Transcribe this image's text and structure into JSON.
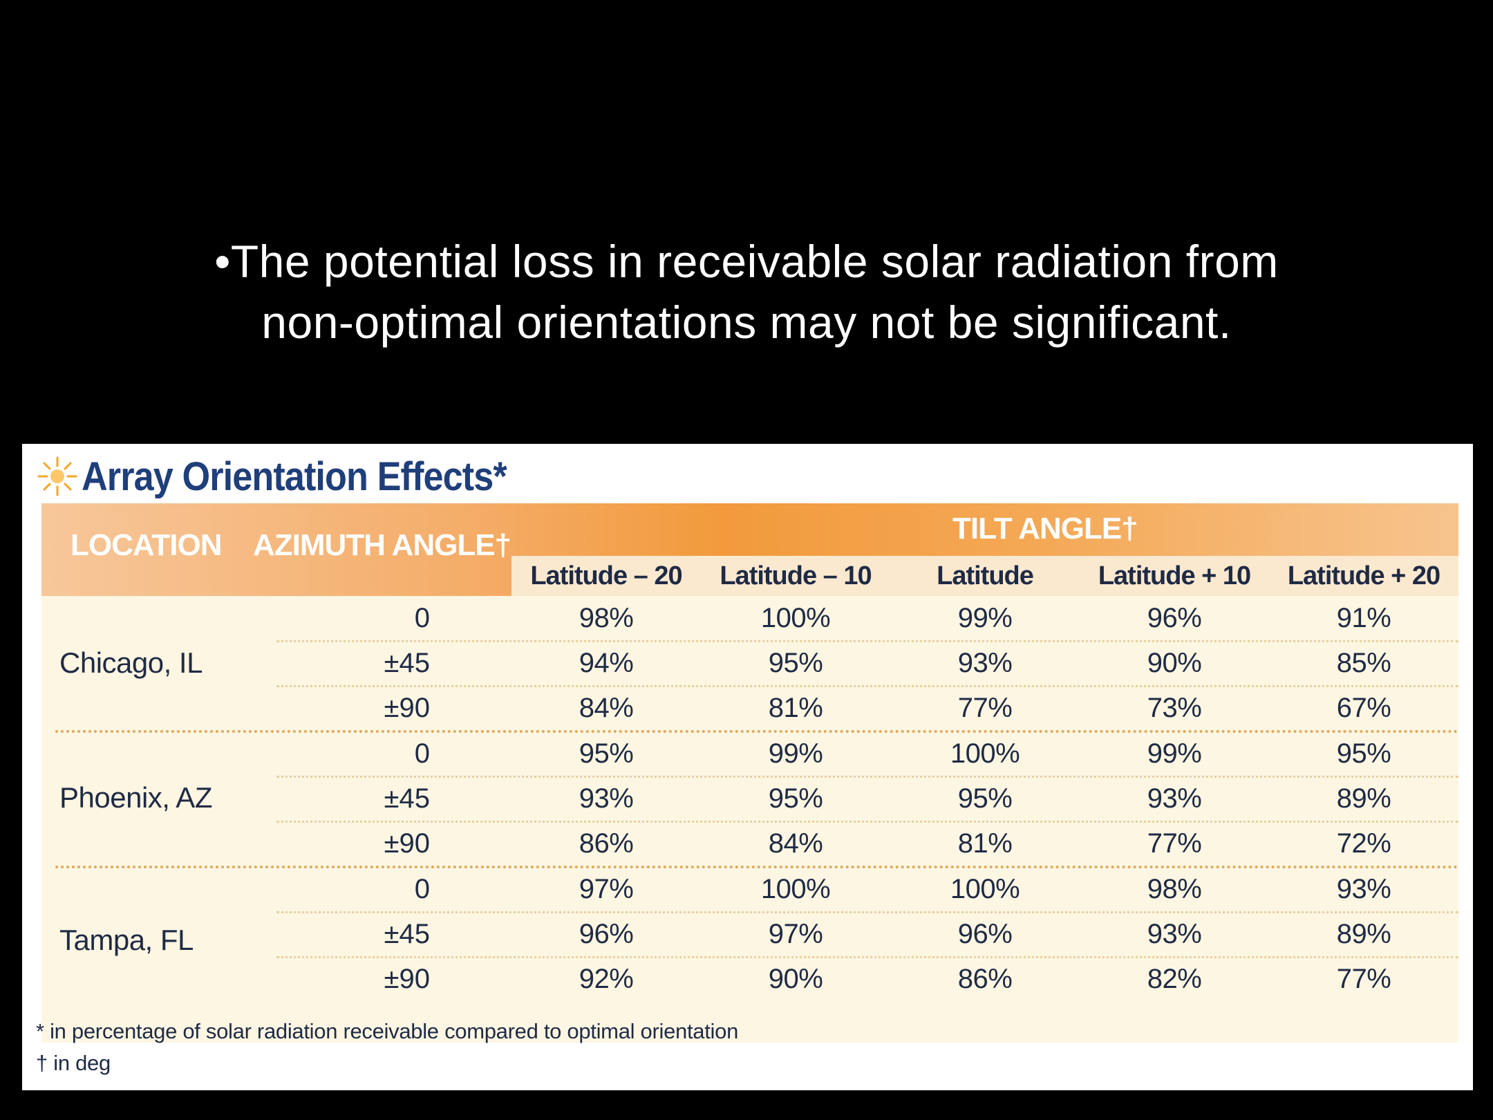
{
  "slide": {
    "bullet_line1": "•The potential loss in receivable solar radiation from",
    "bullet_line2": "non-optimal orientations may not be significant."
  },
  "table": {
    "title": "Array Orientation Effects*",
    "headers": {
      "location": "LOCATION",
      "azimuth": "AZIMUTH ANGLE†",
      "tilt": "TILT ANGLE†"
    },
    "tilt_columns": [
      "Latitude – 20",
      "Latitude – 10",
      "Latitude",
      "Latitude + 10",
      "Latitude + 20"
    ],
    "groups": [
      {
        "location": "Chicago, IL",
        "rows": [
          {
            "azimuth": "0",
            "values": [
              "98%",
              "100%",
              "99%",
              "96%",
              "91%"
            ]
          },
          {
            "azimuth": "±45",
            "values": [
              "94%",
              "95%",
              "93%",
              "90%",
              "85%"
            ]
          },
          {
            "azimuth": "±90",
            "values": [
              "84%",
              "81%",
              "77%",
              "73%",
              "67%"
            ]
          }
        ]
      },
      {
        "location": "Phoenix, AZ",
        "rows": [
          {
            "azimuth": "0",
            "values": [
              "95%",
              "99%",
              "100%",
              "99%",
              "95%"
            ]
          },
          {
            "azimuth": "±45",
            "values": [
              "93%",
              "95%",
              "95%",
              "93%",
              "89%"
            ]
          },
          {
            "azimuth": "±90",
            "values": [
              "86%",
              "84%",
              "81%",
              "77%",
              "72%"
            ]
          }
        ]
      },
      {
        "location": "Tampa, FL",
        "rows": [
          {
            "azimuth": "0",
            "values": [
              "97%",
              "100%",
              "100%",
              "98%",
              "93%"
            ]
          },
          {
            "azimuth": "±45",
            "values": [
              "96%",
              "97%",
              "96%",
              "93%",
              "89%"
            ]
          },
          {
            "azimuth": "±90",
            "values": [
              "92%",
              "90%",
              "86%",
              "82%",
              "77%"
            ]
          }
        ]
      }
    ],
    "footnotes": [
      "* in percentage of solar radiation receivable compared to optimal orientation",
      "† in deg"
    ]
  },
  "colors": {
    "header_orange": "#f29a3c",
    "subheader_bg": "#fbe9cf",
    "body_bg": "#fdf6e3",
    "title_blue": "#1f3f7a"
  },
  "icons": {
    "title_icon": "sun-icon"
  }
}
